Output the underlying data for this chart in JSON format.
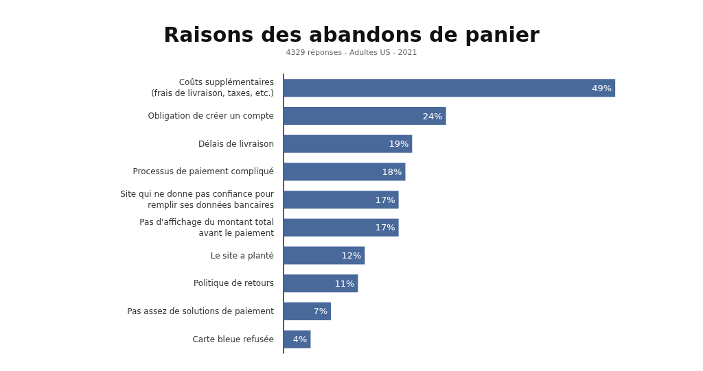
{
  "chart_data": {
    "type": "bar",
    "orientation": "horizontal",
    "title": "Raisons des abandons de panier",
    "subtitle": "4329 réponses - Adultes US - 2021",
    "categories": [
      "Coûts supplémentaires\n(frais de livraison, taxes, etc.)",
      "Obligation de créer un compte",
      "Délais de livraison",
      "Processus de paiement compliqué",
      "Site qui ne donne pas confiance pour\nremplir ses données bancaires",
      "Pas d'affichage du montant total\navant le paiement",
      "Le site a planté",
      "Politique de retours",
      "Pas assez de solutions de paiement",
      "Carte bleue refusée"
    ],
    "values": [
      49,
      24,
      19,
      18,
      17,
      17,
      12,
      11,
      7,
      4
    ],
    "value_labels": [
      "49%",
      "24%",
      "19%",
      "18%",
      "17%",
      "17%",
      "12%",
      "11%",
      "7%",
      "4%"
    ],
    "color": "#48699a"
  }
}
